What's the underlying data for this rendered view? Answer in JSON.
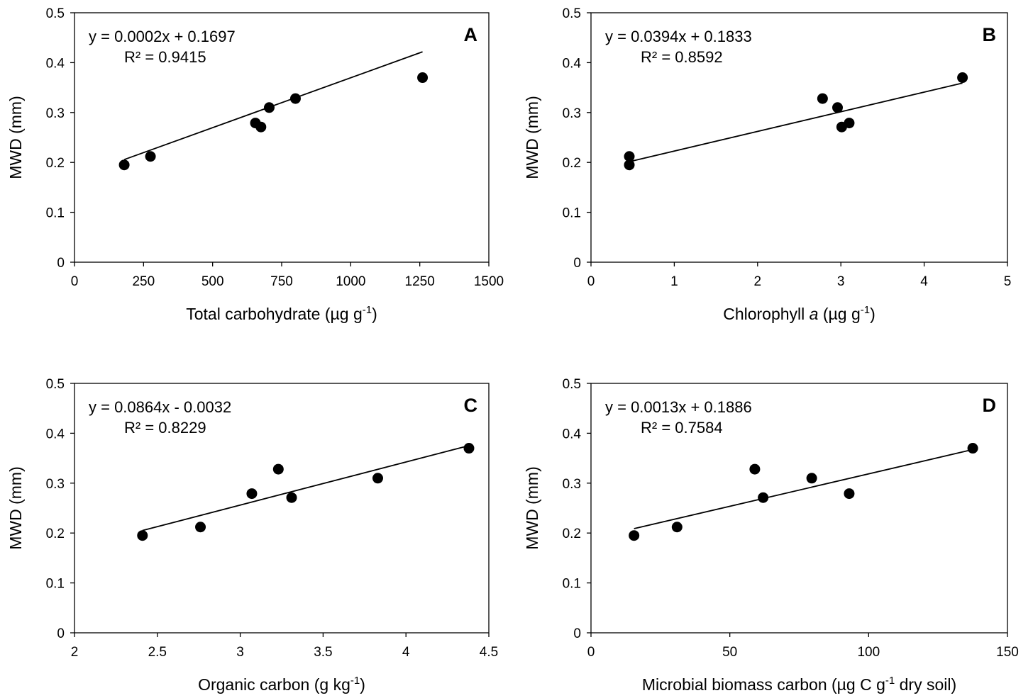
{
  "chart_data": [
    {
      "type": "scatter",
      "panel": "A",
      "xlabel": {
        "pre": "Total carbohydrate (µg g",
        "sup": "-1",
        "post": ")"
      },
      "ylabel": "MWD (mm)",
      "xlim": [
        0,
        1500
      ],
      "ylim": [
        0,
        0.5
      ],
      "xticks": [
        0,
        250,
        500,
        750,
        1000,
        1250,
        1500
      ],
      "yticks": [
        0,
        0.1,
        0.2,
        0.3,
        0.4,
        0.5
      ],
      "points": [
        [
          180,
          0.195
        ],
        [
          275,
          0.212
        ],
        [
          655,
          0.279
        ],
        [
          675,
          0.271
        ],
        [
          705,
          0.31
        ],
        [
          800,
          0.328
        ],
        [
          1260,
          0.37
        ]
      ],
      "trendline": {
        "x": [
          180,
          1260
        ],
        "slope": 0.0002,
        "intercept": 0.1697
      },
      "equation": "y = 0.0002x + 0.1697",
      "r2": "R² = 0.9415"
    },
    {
      "type": "scatter",
      "panel": "B",
      "xlabel": {
        "pre": "Chlorophyll ",
        "italic": "a",
        "mid": " (µg g",
        "sup": "-1",
        "post": ")"
      },
      "ylabel": "MWD (mm)",
      "xlim": [
        0,
        5
      ],
      "ylim": [
        0,
        0.5
      ],
      "xticks": [
        0,
        1,
        2,
        3,
        4,
        5
      ],
      "yticks": [
        0,
        0.1,
        0.2,
        0.3,
        0.4,
        0.5
      ],
      "points": [
        [
          0.46,
          0.212
        ],
        [
          0.46,
          0.195
        ],
        [
          2.78,
          0.328
        ],
        [
          2.96,
          0.31
        ],
        [
          3.01,
          0.271
        ],
        [
          3.1,
          0.279
        ],
        [
          4.46,
          0.37
        ]
      ],
      "trendline": {
        "x": [
          0.46,
          4.46
        ],
        "slope": 0.0394,
        "intercept": 0.1833
      },
      "equation": "y = 0.0394x + 0.1833",
      "r2": "R² = 0.8592"
    },
    {
      "type": "scatter",
      "panel": "C",
      "xlabel": {
        "pre": "Organic carbon (g kg",
        "sup": "-1",
        "post": ")"
      },
      "ylabel": "MWD (mm)",
      "xlim": [
        2,
        4.5
      ],
      "ylim": [
        0,
        0.5
      ],
      "xticks": [
        2,
        2.5,
        3,
        3.5,
        4,
        4.5
      ],
      "yticks": [
        0,
        0.1,
        0.2,
        0.3,
        0.4,
        0.5
      ],
      "points": [
        [
          2.41,
          0.195
        ],
        [
          2.76,
          0.212
        ],
        [
          3.07,
          0.279
        ],
        [
          3.23,
          0.328
        ],
        [
          3.31,
          0.271
        ],
        [
          3.83,
          0.31
        ],
        [
          4.38,
          0.37
        ]
      ],
      "trendline": {
        "x": [
          2.41,
          4.38
        ],
        "slope": 0.0864,
        "intercept": -0.0032
      },
      "equation": "y = 0.0864x - 0.0032",
      "r2": "R² = 0.8229"
    },
    {
      "type": "scatter",
      "panel": "D",
      "xlabel": {
        "pre": "Microbial biomass carbon (µg C g",
        "sup": "-1",
        "post": " dry soil)"
      },
      "ylabel": "MWD (mm)",
      "xlim": [
        0,
        150
      ],
      "ylim": [
        0,
        0.5
      ],
      "xticks": [
        0,
        50,
        100,
        150
      ],
      "yticks": [
        0,
        0.1,
        0.2,
        0.3,
        0.4,
        0.5
      ],
      "points": [
        [
          15.5,
          0.195
        ],
        [
          31,
          0.212
        ],
        [
          59,
          0.328
        ],
        [
          62,
          0.271
        ],
        [
          79.5,
          0.31
        ],
        [
          93,
          0.279
        ],
        [
          137.5,
          0.37
        ]
      ],
      "trendline": {
        "x": [
          15.5,
          137.5
        ],
        "slope": 0.0013,
        "intercept": 0.1886
      },
      "equation": "y = 0.0013x + 0.1886",
      "r2": "R² = 0.7584"
    }
  ]
}
